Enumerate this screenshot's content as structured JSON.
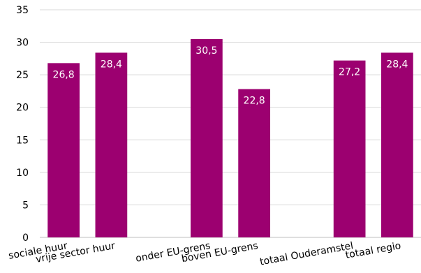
{
  "chart_data": {
    "type": "bar",
    "title": "",
    "xlabel": "",
    "ylabel": "",
    "ylim": [
      0,
      35
    ],
    "yticks": [
      0,
      5,
      10,
      15,
      20,
      25,
      30,
      35
    ],
    "grid": true,
    "legend": "none",
    "bar_color": "#9c0070",
    "slots": [
      {
        "label": "sociale huur",
        "value": 26.8,
        "display": "26,8"
      },
      {
        "label": "vrije sector huur",
        "value": 28.4,
        "display": "28,4"
      },
      null,
      {
        "label": "onder EU-grens",
        "value": 30.5,
        "display": "30,5"
      },
      {
        "label": "boven EU-grens",
        "value": 22.8,
        "display": "22,8"
      },
      null,
      {
        "label": "totaal Ouderamstel",
        "value": 27.2,
        "display": "27,2"
      },
      {
        "label": "totaal regio",
        "value": 28.4,
        "display": "28,4"
      }
    ]
  }
}
